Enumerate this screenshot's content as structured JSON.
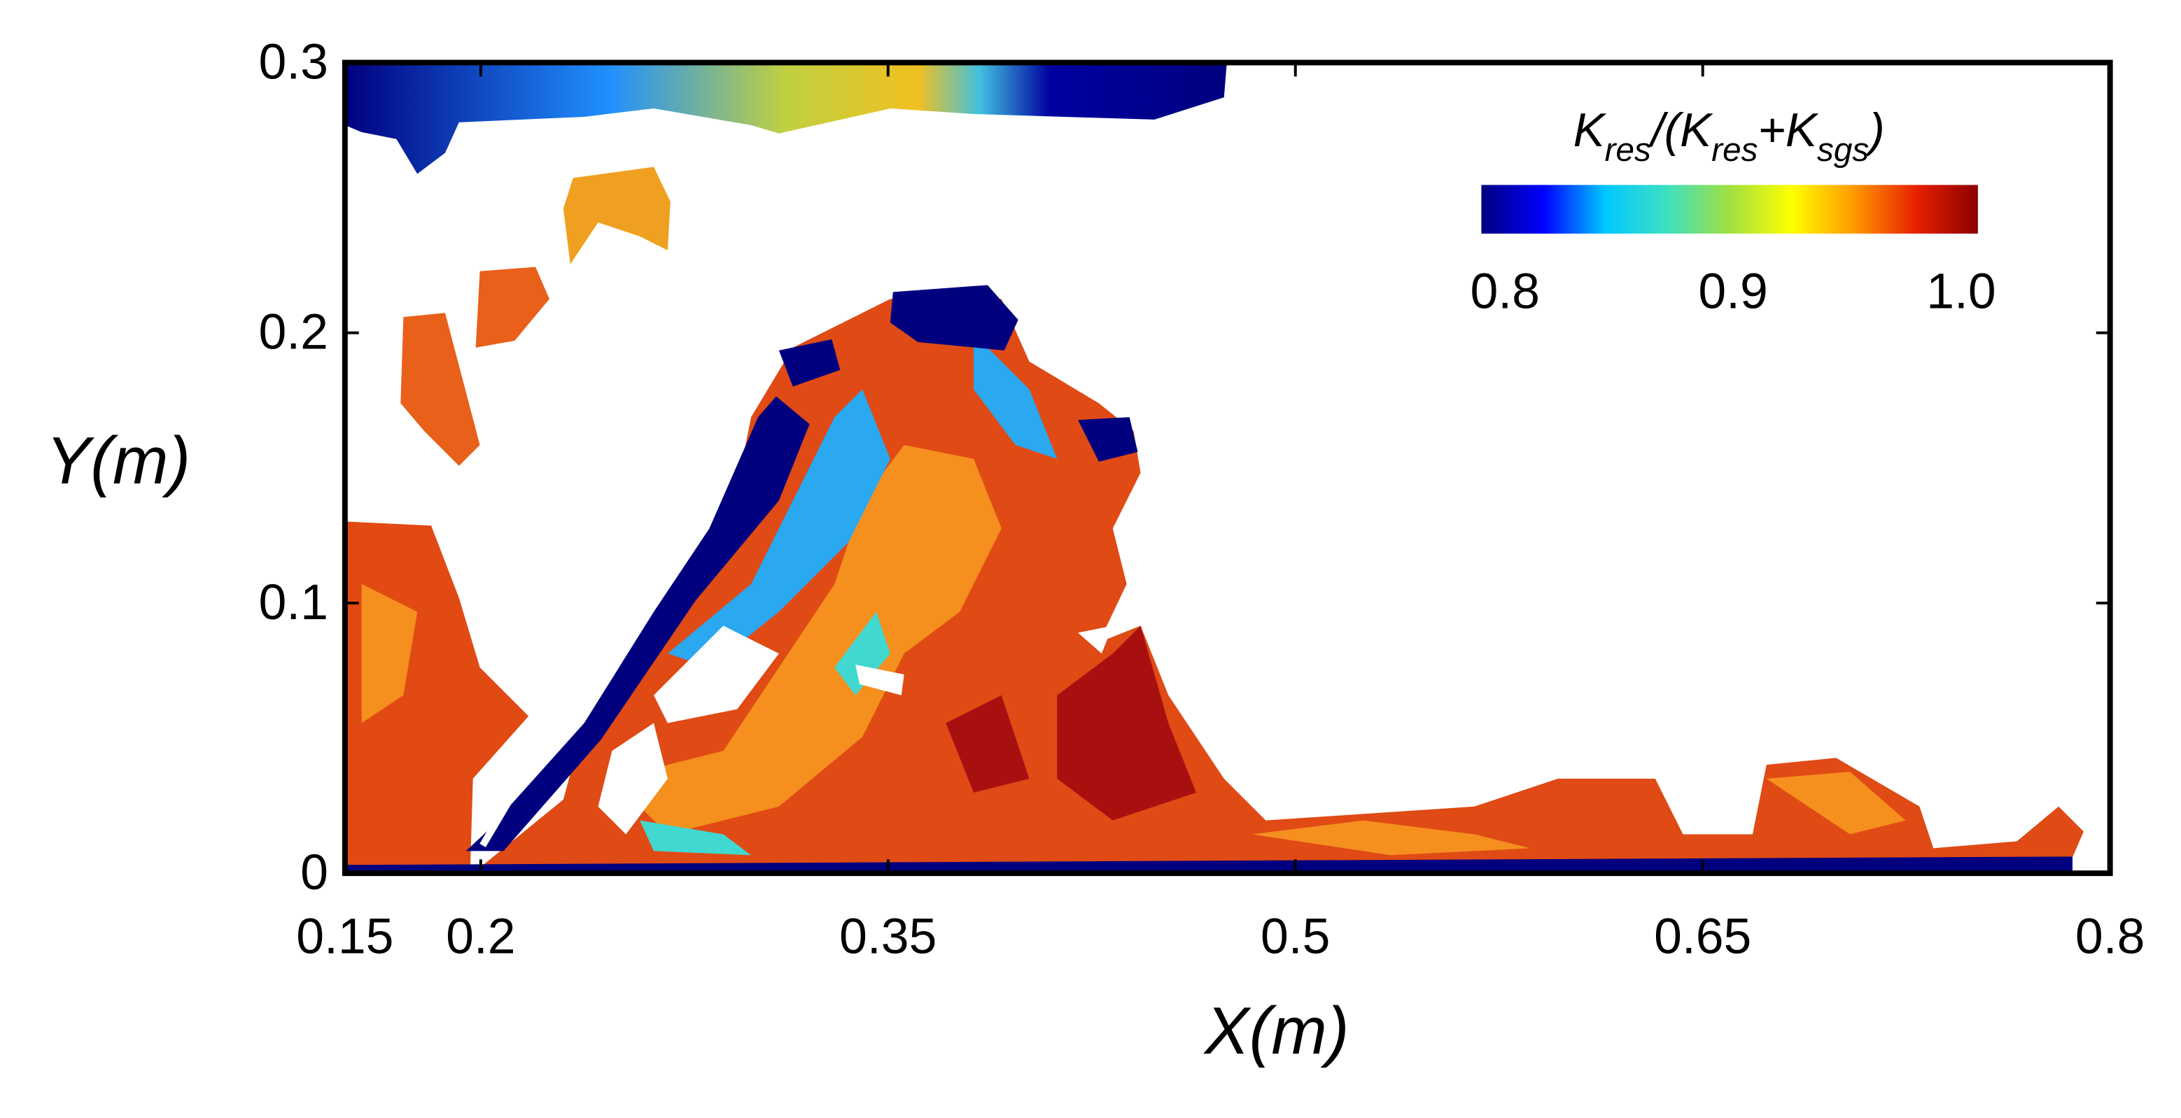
{
  "chart_data": {
    "type": "contour",
    "xlabel": "X(m)",
    "ylabel": "Y(m)",
    "xlim": [
      0.15,
      0.8
    ],
    "xticks": [
      0.15,
      0.2,
      0.35,
      0.5,
      0.65,
      0.8
    ],
    "ylim": [
      0,
      0.3
    ],
    "yticks": [
      0,
      0.1,
      0.2,
      0.3
    ],
    "colorbar": {
      "label": [
        "K",
        "res",
        "/(K",
        "res",
        "+K",
        "sgs",
        ")"
      ],
      "clim": [
        0.8,
        1
      ],
      "ticks": [
        0.8,
        0.9,
        {
          "value": 1,
          "label": "1.0"
        }
      ],
      "colors": [
        "#00007f",
        "#0000ff",
        "#00c8ff",
        "#3fe0c0",
        "#a0e040",
        "#ffff00",
        "#ff9a00",
        "#e82000",
        "#8b0000"
      ]
    }
  }
}
